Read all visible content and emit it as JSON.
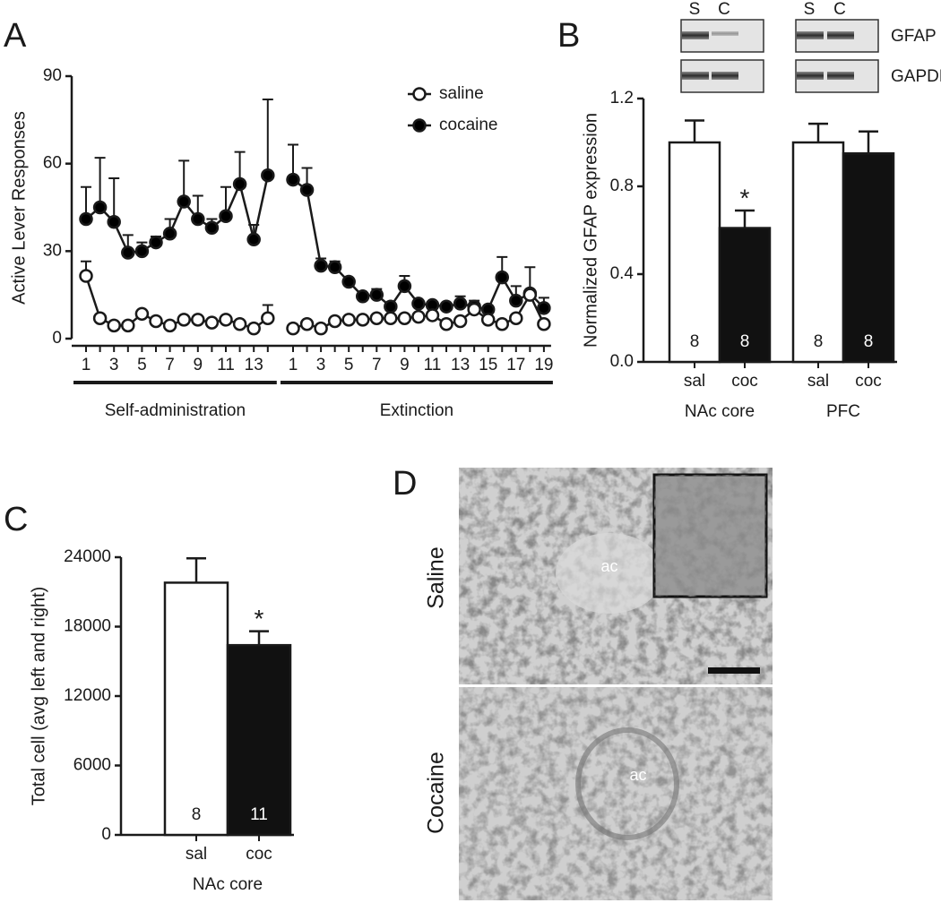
{
  "chart_data": [
    {
      "type": "line",
      "panel_label": "A",
      "y_label": "Active Lever Responses",
      "ylim": [
        0,
        90
      ],
      "yticks": [
        0,
        30,
        60,
        90
      ],
      "legend": "upper right",
      "segments": [
        {
          "label": "Self-administration",
          "categories": [
            "1",
            null,
            "3",
            null,
            "5",
            null,
            "7",
            null,
            "9",
            null,
            "11",
            null,
            "13",
            null
          ]
        },
        {
          "label": "Extinction",
          "categories": [
            "1",
            null,
            "3",
            null,
            "5",
            null,
            "7",
            null,
            "9",
            null,
            "11",
            null,
            "13",
            null,
            "15",
            null,
            "17",
            null,
            "19"
          ]
        }
      ],
      "series": [
        {
          "name": "saline",
          "color": "#ffffff",
          "segments": [
            {
              "values": [
                21.5,
                7,
                4.5,
                4.5,
                8.5,
                6,
                4.5,
                6.5,
                6.5,
                5.5,
                6.5,
                5,
                3.5,
                7
              ],
              "errors": [
                5,
                0.5,
                0.5,
                0.5,
                1,
                0.5,
                0.5,
                0.5,
                0.5,
                0.5,
                0.5,
                0.5,
                0.5,
                4.5
              ]
            },
            {
              "values": [
                3.5,
                5,
                3.5,
                6,
                6.5,
                6.5,
                7,
                7,
                7,
                7.5,
                8,
                5,
                6,
                10,
                6.5,
                5,
                7,
                15,
                5
              ],
              "errors": [
                1,
                1,
                1,
                1,
                1,
                1,
                1,
                1,
                1,
                1,
                1,
                1,
                1,
                1,
                1,
                1,
                1,
                1,
                1
              ]
            }
          ]
        },
        {
          "name": "cocaine",
          "color": "#000000",
          "segments": [
            {
              "values": [
                41,
                45,
                40,
                29.5,
                30,
                33,
                36,
                47,
                41,
                38,
                42,
                53,
                34,
                56
              ],
              "errors": [
                11,
                17,
                15,
                6,
                3,
                2,
                5,
                14,
                8,
                3,
                10,
                11,
                5,
                26
              ]
            },
            {
              "values": [
                54.5,
                51,
                25,
                24.5,
                19.5,
                14.5,
                15,
                11,
                18,
                12,
                11.5,
                11,
                12,
                11,
                10,
                21,
                13,
                15.5,
                10.5
              ],
              "errors": [
                12,
                7.5,
                2.5,
                2,
                0.5,
                1,
                2,
                1,
                3.5,
                1,
                1,
                1,
                2.5,
                2,
                1,
                7,
                5,
                9,
                3.5
              ]
            }
          ]
        }
      ]
    },
    {
      "type": "bar",
      "panel_label": "B",
      "y_label": "Normalized GFAP expression",
      "ylim": [
        0,
        1.2
      ],
      "yticks": [
        {
          "value": 0,
          "label": "0.0"
        },
        0.4,
        0.8,
        1.2
      ],
      "categories": [
        "sal",
        "coc",
        "sal",
        "coc"
      ],
      "groups": [
        "NAc core",
        "PFC"
      ],
      "values": [
        1.0,
        0.61,
        1.0,
        0.95
      ],
      "errors": [
        0.1,
        0.08,
        0.085,
        0.1
      ],
      "colors": [
        "#ffffff",
        "#111111",
        "#ffffff",
        "#111111"
      ],
      "n_labels": [
        "8",
        "8",
        "8",
        "8"
      ],
      "significance": [
        null,
        "*",
        null,
        null
      ],
      "blot": {
        "lane_labels": [
          "S",
          "C",
          "S",
          "C"
        ],
        "rows": [
          "GFAP",
          "GAPDH"
        ]
      }
    },
    {
      "type": "bar",
      "panel_label": "C",
      "y_label": "Total cell (avg left and right)",
      "ylim": [
        0,
        24000
      ],
      "yticks": [
        0,
        6000,
        12000,
        18000,
        24000
      ],
      "categories": [
        "sal",
        "coc"
      ],
      "groups": [
        "NAc core"
      ],
      "values": [
        21800,
        16400
      ],
      "errors": [
        2100,
        1200
      ],
      "colors": [
        "#ffffff",
        "#111111"
      ],
      "n_labels": [
        "8",
        "11"
      ],
      "significance": [
        null,
        "*"
      ]
    }
  ],
  "micrograph_panel": {
    "panel_label": "D",
    "rows": [
      {
        "label": "Saline",
        "region_label": "ac"
      },
      {
        "label": "Cocaine",
        "region_label": "ac"
      }
    ]
  }
}
